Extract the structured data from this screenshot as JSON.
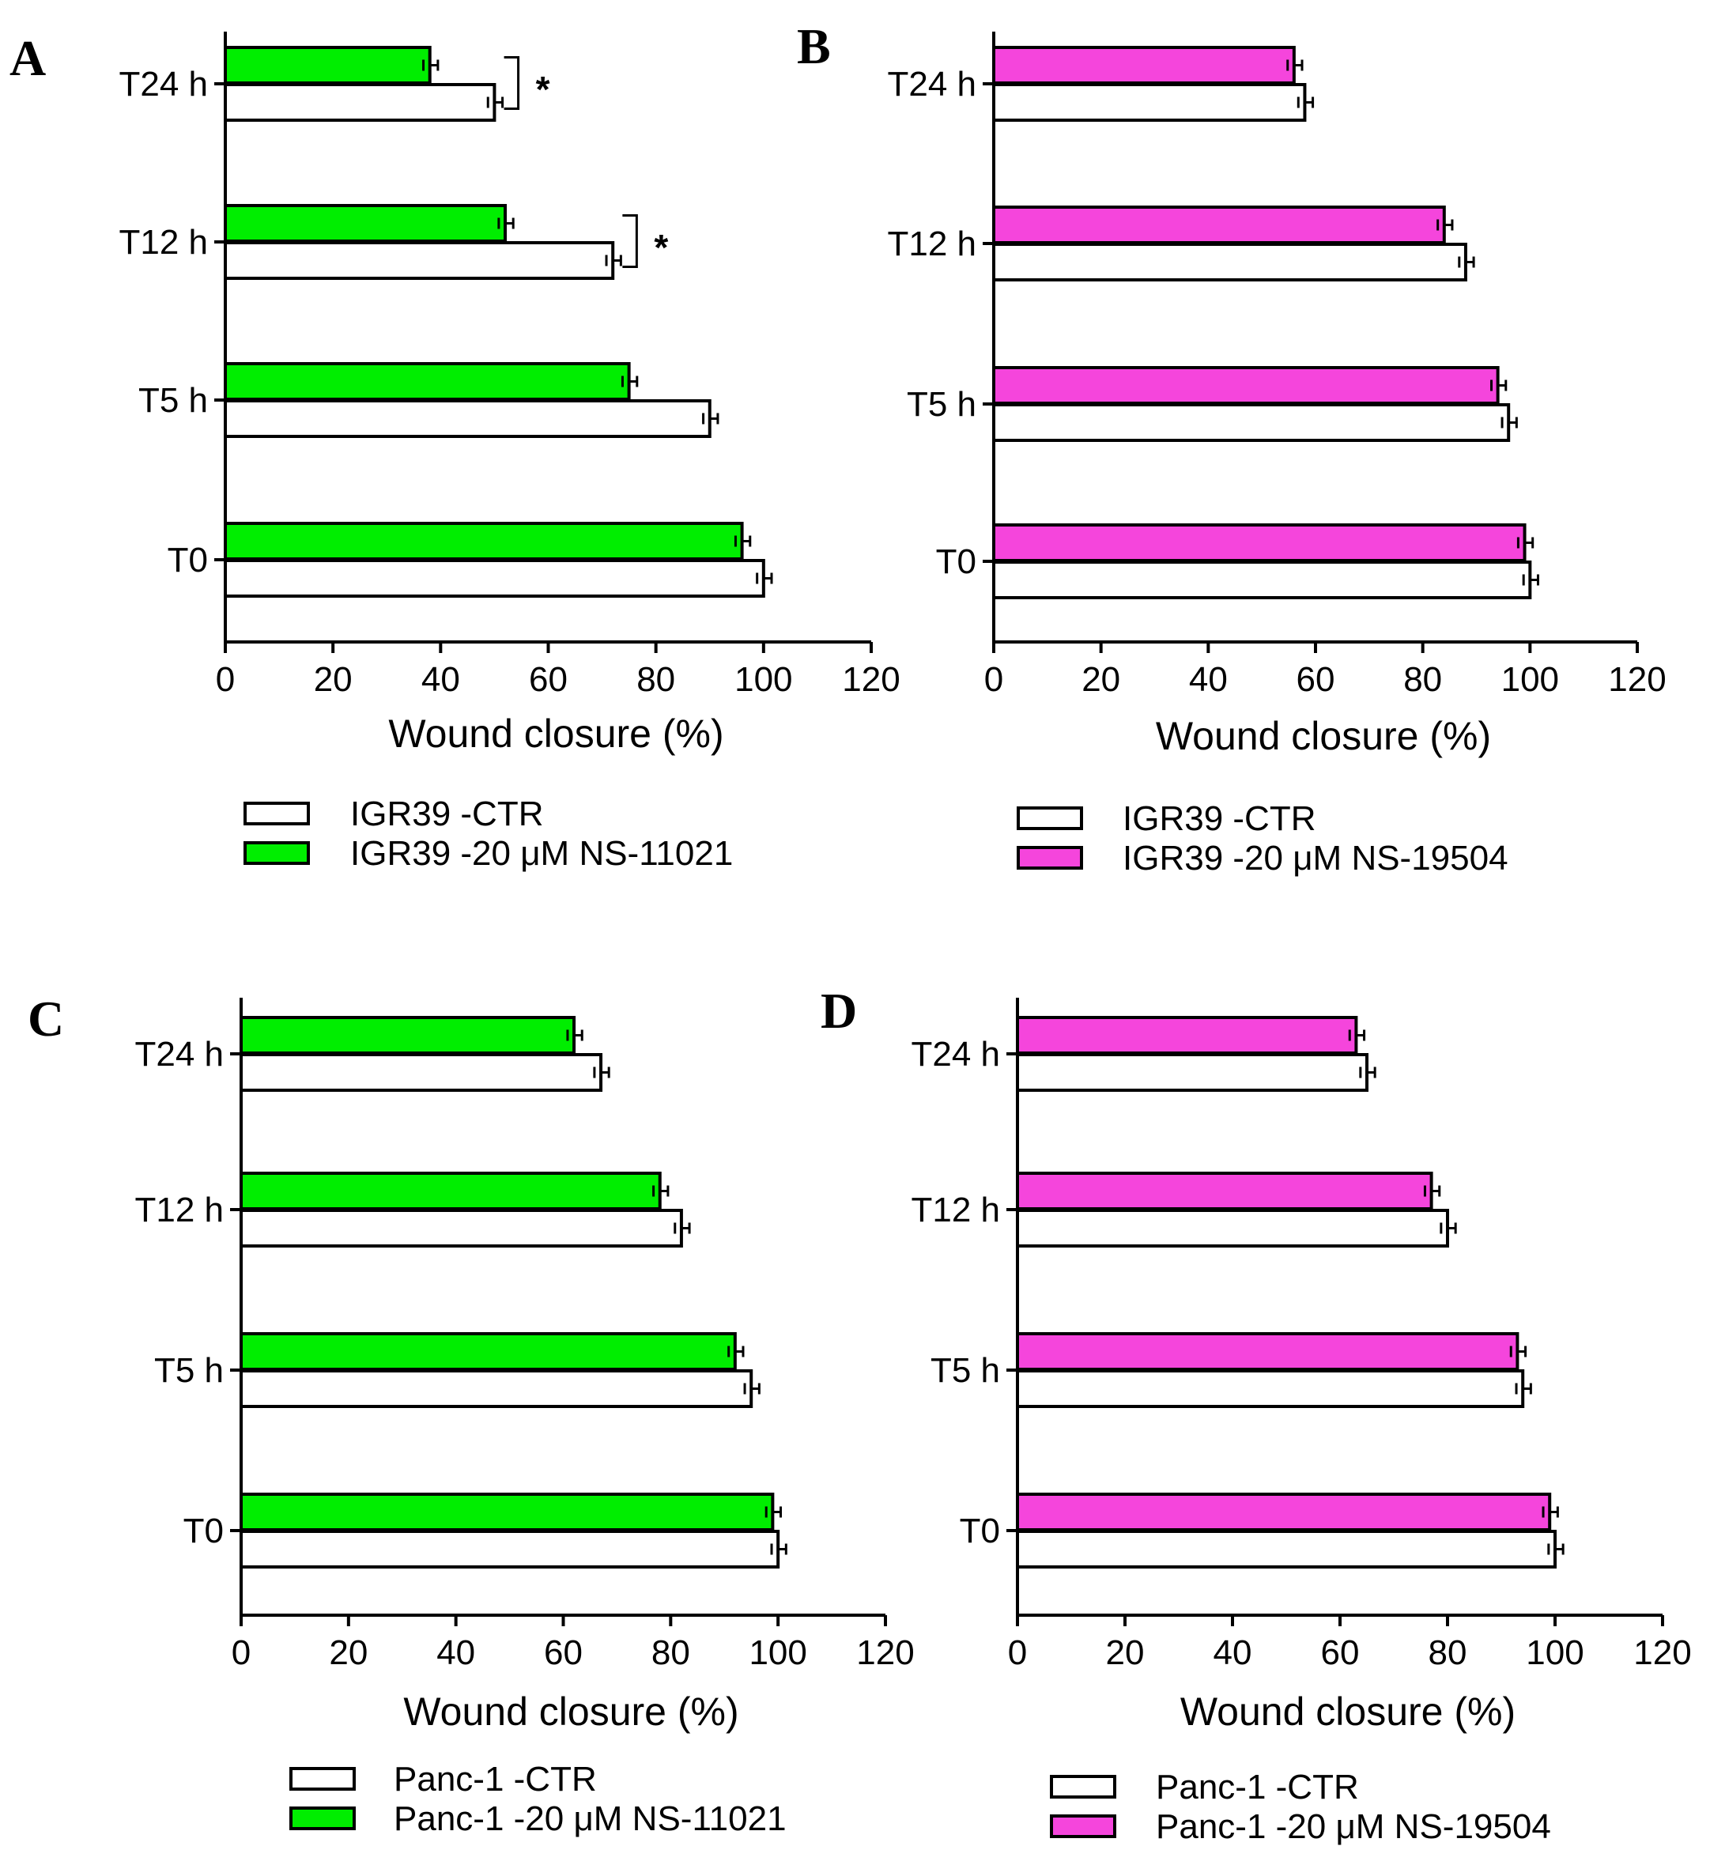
{
  "chart_data": [
    {
      "type": "bar",
      "orientation": "horizontal",
      "panel": "A",
      "categories": [
        "T24 h",
        "T12 h",
        "T5 h",
        "T0"
      ],
      "series": [
        {
          "name": "IGR39 -20 μM NS-11021",
          "color": "#00ee00",
          "values": [
            38,
            52,
            75,
            96
          ],
          "errors": [
            1.2,
            1.2,
            1.2,
            1.2
          ]
        },
        {
          "name": "IGR39 -CTR",
          "color": "#ffffff",
          "values": [
            50,
            72,
            90,
            100
          ],
          "errors": [
            1.2,
            1.2,
            1.2,
            1.2
          ]
        }
      ],
      "significance": [
        {
          "category": "T24 h",
          "label": "*"
        },
        {
          "category": "T12 h",
          "label": "*"
        }
      ],
      "xlabel": "Wound closure (%)",
      "ylabel": "",
      "xlim": [
        0,
        120
      ],
      "xticks": [
        0,
        20,
        40,
        60,
        80,
        100,
        120
      ],
      "legend": "bottom"
    },
    {
      "type": "bar",
      "orientation": "horizontal",
      "panel": "B",
      "categories": [
        "T24 h",
        "T12 h",
        "T5 h",
        "T0"
      ],
      "series": [
        {
          "name": "IGR39 -20 μM NS-19504",
          "color": "#f545dc",
          "values": [
            56,
            84,
            94,
            99
          ],
          "errors": [
            1.2,
            1.2,
            1.2,
            1.2
          ]
        },
        {
          "name": "IGR39 -CTR",
          "color": "#ffffff",
          "values": [
            58,
            88,
            96,
            100
          ],
          "errors": [
            1.2,
            1.2,
            1.2,
            1.2
          ]
        }
      ],
      "significance": [],
      "xlabel": "Wound closure (%)",
      "ylabel": "",
      "xlim": [
        0,
        120
      ],
      "xticks": [
        0,
        20,
        40,
        60,
        80,
        100,
        120
      ],
      "legend": "bottom"
    },
    {
      "type": "bar",
      "orientation": "horizontal",
      "panel": "C",
      "categories": [
        "T24 h",
        "T12 h",
        "T5 h",
        "T0"
      ],
      "series": [
        {
          "name": "Panc-1 -20 μM NS-11021",
          "color": "#00ee00",
          "values": [
            62,
            78,
            92,
            99
          ],
          "errors": [
            1.2,
            1.2,
            1.2,
            1.2
          ]
        },
        {
          "name": "Panc-1 -CTR",
          "color": "#ffffff",
          "values": [
            67,
            82,
            95,
            100
          ],
          "errors": [
            1.2,
            1.2,
            1.2,
            1.2
          ]
        }
      ],
      "significance": [],
      "xlabel": "Wound closure (%)",
      "ylabel": "",
      "xlim": [
        0,
        120
      ],
      "xticks": [
        0,
        20,
        40,
        60,
        80,
        100,
        120
      ],
      "legend": "bottom"
    },
    {
      "type": "bar",
      "orientation": "horizontal",
      "panel": "D",
      "categories": [
        "T24 h",
        "T12 h",
        "T5 h",
        "T0"
      ],
      "series": [
        {
          "name": "Panc-1 -20 μM NS-19504",
          "color": "#f545dc",
          "values": [
            63,
            77,
            93,
            99
          ],
          "errors": [
            1.2,
            1.2,
            1.2,
            1.2
          ]
        },
        {
          "name": "Panc-1 -CTR",
          "color": "#ffffff",
          "values": [
            65,
            80,
            94,
            100
          ],
          "errors": [
            1.2,
            1.2,
            1.2,
            1.2
          ]
        }
      ],
      "significance": [],
      "xlabel": "Wound closure (%)",
      "ylabel": "",
      "xlim": [
        0,
        120
      ],
      "xticks": [
        0,
        20,
        40,
        60,
        80,
        100,
        120
      ],
      "legend": "bottom"
    }
  ]
}
